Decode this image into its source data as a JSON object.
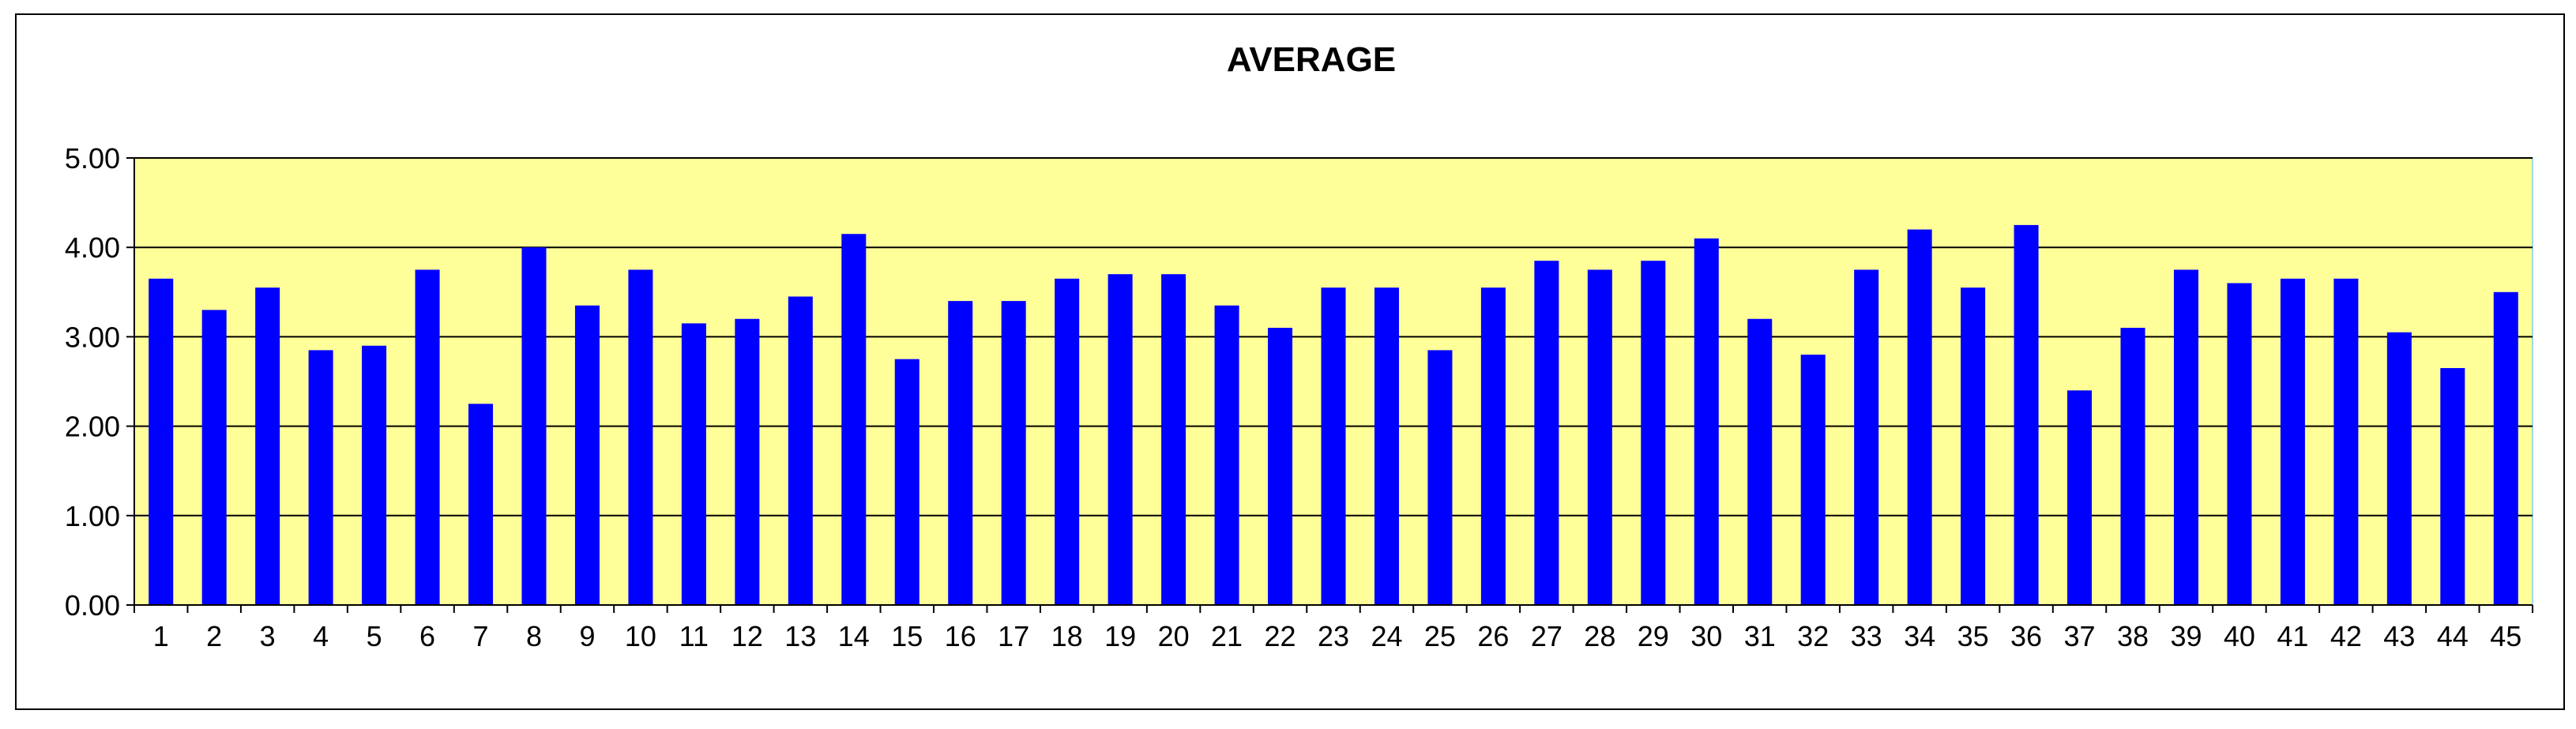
{
  "chart_data": {
    "type": "bar",
    "title": "AVERAGE",
    "xlabel": "",
    "ylabel": "",
    "ylim": [
      0,
      5
    ],
    "yticks": [
      "0.00",
      "1.00",
      "2.00",
      "3.00",
      "4.00",
      "5.00"
    ],
    "grid": true,
    "legend": "none",
    "colors": {
      "bar": "#0000ff",
      "plot_background": "#ffff99",
      "gridline": "#000000",
      "frame": "#000000"
    },
    "categories": [
      "1",
      "2",
      "3",
      "4",
      "5",
      "6",
      "7",
      "8",
      "9",
      "10",
      "11",
      "12",
      "13",
      "14",
      "15",
      "16",
      "17",
      "18",
      "19",
      "20",
      "21",
      "22",
      "23",
      "24",
      "25",
      "26",
      "27",
      "28",
      "29",
      "30",
      "31",
      "32",
      "33",
      "34",
      "35",
      "36",
      "37",
      "38",
      "39",
      "40",
      "41",
      "42",
      "43",
      "44",
      "45"
    ],
    "values": [
      3.65,
      3.3,
      3.55,
      2.85,
      2.9,
      3.75,
      2.25,
      4.0,
      3.35,
      3.75,
      3.15,
      3.2,
      3.45,
      4.15,
      2.75,
      3.4,
      3.4,
      3.65,
      3.7,
      3.7,
      3.35,
      3.1,
      3.55,
      3.55,
      2.85,
      3.55,
      3.85,
      3.75,
      3.85,
      4.1,
      3.2,
      2.8,
      3.75,
      4.2,
      3.55,
      4.25,
      2.4,
      3.1,
      3.75,
      3.6,
      3.65,
      3.65,
      3.05,
      2.65,
      3.5
    ]
  }
}
